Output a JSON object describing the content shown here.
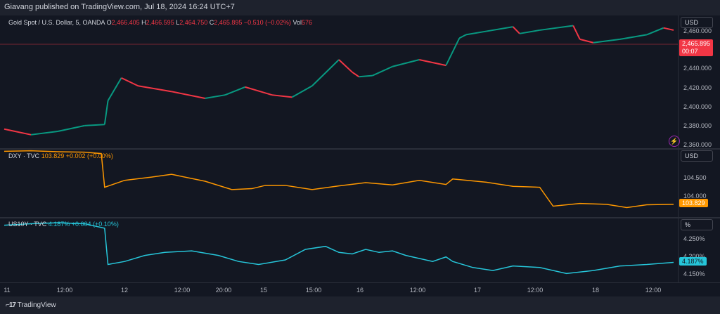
{
  "header": {
    "published_text": "Giavang published on TradingView.com, Jul 18, 2024 16:24 UTC+7"
  },
  "panes": {
    "gold": {
      "symbol": "Gold Spot / U.S. Dollar, 5, OANDA",
      "o_label": "O",
      "o": "2,466.405",
      "h_label": "H",
      "h": "2,466.595",
      "l_label": "L",
      "l": "2,464.750",
      "c_label": "C",
      "c": "2,465.895",
      "change": "−0.510 (−0.02%)",
      "vol_label": "Vol",
      "vol": "576",
      "unit": "USD",
      "ticks": [
        "2,460.000",
        "2,440.000",
        "2,420.000",
        "2,400.000",
        "2,380.000",
        "2,360.000"
      ],
      "last_price": "2,465.895",
      "countdown": "00:07",
      "color_up": "#089981",
      "color_down": "#f23645"
    },
    "dxy": {
      "symbol": "DXY · TVC",
      "value": "103.829",
      "change": "+0.002 (+0.00%)",
      "unit": "USD",
      "ticks": [
        "104.500",
        "104.000"
      ],
      "last_price": "103.829",
      "color": "#ff9800"
    },
    "us10y": {
      "symbol": "US10Y · TVC",
      "value": "4.187%",
      "change": "+0.004 (+0.10%)",
      "unit": "%",
      "ticks": [
        "4.250%",
        "4.200%",
        "4.150%"
      ],
      "last_price": "4.187%",
      "color": "#26c6da"
    }
  },
  "time_axis": [
    "11",
    "12:00",
    "12",
    "12:00",
    "20:00",
    "15",
    "15:00",
    "16",
    "12:00",
    "17",
    "12:00",
    "18",
    "12:00"
  ],
  "footer": {
    "brand": "TradingView"
  },
  "chart_data": [
    {
      "type": "line",
      "title": "Gold Spot / U.S. Dollar, 5, OANDA",
      "ylabel": "USD",
      "ylim": [
        2360,
        2470
      ],
      "series": [
        {
          "name": "Gold Spot / U.S. Dollar",
          "x": [
            0,
            0.04,
            0.08,
            0.12,
            0.15,
            0.155,
            0.175,
            0.2,
            0.25,
            0.3,
            0.33,
            0.36,
            0.4,
            0.43,
            0.46,
            0.5,
            0.52,
            0.53,
            0.55,
            0.58,
            0.62,
            0.66,
            0.68,
            0.69,
            0.72,
            0.76,
            0.77,
            0.8,
            0.85,
            0.86,
            0.88,
            0.92,
            0.96,
            0.985,
            1.0
          ],
          "values": [
            2375,
            2370,
            2373,
            2378,
            2379,
            2400,
            2420,
            2413,
            2408,
            2402,
            2405,
            2412,
            2405,
            2403,
            2413,
            2436,
            2425,
            2421,
            2422,
            2430,
            2436,
            2431,
            2455,
            2458,
            2461,
            2465,
            2459,
            2462,
            2466,
            2454,
            2451,
            2454,
            2458,
            2464,
            2462
          ]
        }
      ]
    },
    {
      "type": "line",
      "title": "DXY · TVC",
      "ylabel": "USD",
      "ylim": [
        103.6,
        105.0
      ],
      "series": [
        {
          "name": "DXY",
          "x": [
            0,
            0.04,
            0.08,
            0.12,
            0.145,
            0.15,
            0.18,
            0.22,
            0.25,
            0.3,
            0.34,
            0.37,
            0.39,
            0.42,
            0.46,
            0.5,
            0.54,
            0.58,
            0.62,
            0.66,
            0.67,
            0.72,
            0.76,
            0.8,
            0.82,
            0.86,
            0.9,
            0.93,
            0.96,
            1.0
          ],
          "values": [
            104.98,
            104.99,
            104.97,
            104.96,
            104.93,
            104.2,
            104.35,
            104.42,
            104.48,
            104.33,
            104.15,
            104.17,
            104.24,
            104.24,
            104.15,
            104.23,
            104.3,
            104.25,
            104.35,
            104.26,
            104.38,
            104.31,
            104.22,
            104.2,
            103.79,
            103.85,
            103.83,
            103.76,
            103.82,
            103.83
          ]
        }
      ]
    },
    {
      "type": "line",
      "title": "US10Y · TVC",
      "ylabel": "%",
      "ylim": [
        4.13,
        4.33
      ],
      "series": [
        {
          "name": "US10Y",
          "x": [
            0,
            0.04,
            0.08,
            0.12,
            0.15,
            0.155,
            0.18,
            0.21,
            0.24,
            0.28,
            0.32,
            0.35,
            0.38,
            0.42,
            0.45,
            0.48,
            0.5,
            0.52,
            0.54,
            0.56,
            0.58,
            0.6,
            0.64,
            0.66,
            0.67,
            0.7,
            0.73,
            0.76,
            0.8,
            0.84,
            0.86,
            0.88,
            0.92,
            0.96,
            1.0
          ],
          "values": [
            4.31,
            4.315,
            4.318,
            4.315,
            4.3,
            4.18,
            4.19,
            4.21,
            4.22,
            4.225,
            4.21,
            4.19,
            4.18,
            4.195,
            4.23,
            4.24,
            4.22,
            4.215,
            4.23,
            4.22,
            4.225,
            4.21,
            4.19,
            4.205,
            4.19,
            4.17,
            4.16,
            4.175,
            4.17,
            4.15,
            4.155,
            4.16,
            4.175,
            4.18,
            4.187
          ]
        }
      ]
    }
  ]
}
